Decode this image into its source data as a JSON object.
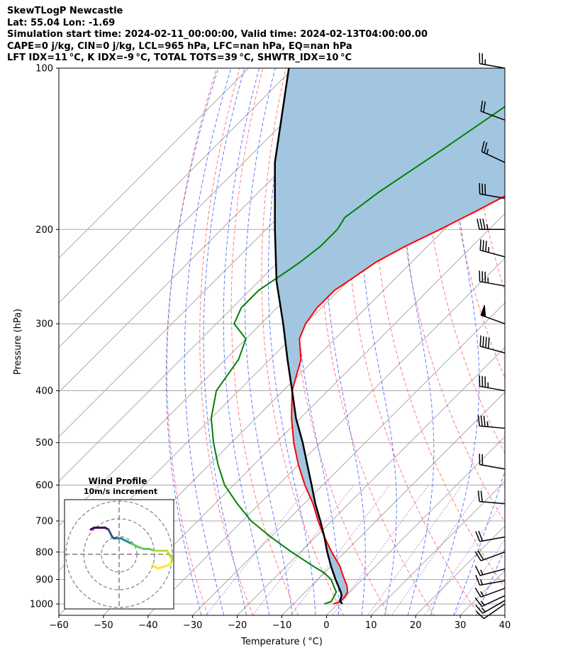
{
  "header": {
    "line1": "SkewTLogP Newcastle",
    "line2": "Lat: 55.04   Lon: -1.69",
    "line3": "Simulation start time: 2024-02-11_00:00:00, Valid time: 2024-02-13T04:00:00.00",
    "line4": "CAPE=0 j/kg, CIN=0 j/kg, LCL=965 hPa, LFC=nan hPa, EQ=nan hPa",
    "line5": "LFT IDX=11 °C, K IDX=-9 °C, TOTAL TOTS=39 °C, SHWTR_IDX=10 °C"
  },
  "chart_data": {
    "type": "skewt",
    "xlabel": "Temperature ( °C)",
    "ylabel": "Pressure (hPa)",
    "xlim": [
      -60,
      40
    ],
    "ylim": [
      1050,
      100
    ],
    "x_ticks": [
      -60,
      -50,
      -40,
      -30,
      -20,
      -10,
      0,
      10,
      20,
      30,
      40
    ],
    "x_tick_labels": [
      "−60",
      "−50",
      "−40",
      "−30",
      "−20",
      "−10",
      "0",
      "10",
      "20",
      "30",
      "40"
    ],
    "y_ticks": [
      1000,
      900,
      800,
      700,
      600,
      500,
      400,
      300,
      200,
      100
    ],
    "y_tick_labels": [
      "1000",
      "900",
      "800",
      "700",
      "600",
      "500",
      "400",
      "300",
      "200",
      "100"
    ],
    "colors": {
      "temperature": "#ff0000",
      "dewpoint": "#008000",
      "parcel": "#000000",
      "cin_shading": "#a3c6e0",
      "isotherms": "#aaaaaa",
      "isobars": "#aaaaaa",
      "dry_adiabats": "#ff6666",
      "moist_adiabats": "#4466ff",
      "mixing_ratio": "#9966cc"
    },
    "temperature_profile": {
      "pressure": [
        1000,
        990,
        970,
        950,
        925,
        900,
        875,
        850,
        800,
        750,
        700,
        650,
        600,
        550,
        500,
        450,
        400,
        350,
        320,
        300,
        280,
        260,
        250,
        230,
        215,
        200,
        185,
        170,
        160,
        150,
        140,
        130,
        120,
        110,
        100
      ],
      "temperature": [
        -1,
        0,
        0,
        -0.5,
        -2,
        -4,
        -6,
        -8,
        -13,
        -18,
        -23,
        -28,
        -34,
        -40,
        -46,
        -52,
        -58,
        -63,
        -68,
        -70,
        -71,
        -71,
        -70,
        -68,
        -65,
        -61,
        -57,
        -53,
        -50,
        -48,
        -47,
        -47,
        -48,
        -50,
        -52
      ]
    },
    "dewpoint_profile": {
      "pressure": [
        1000,
        990,
        970,
        950,
        925,
        900,
        875,
        850,
        800,
        750,
        700,
        650,
        600,
        550,
        500,
        450,
        400,
        350,
        320,
        300,
        280,
        260,
        240,
        230,
        215,
        200,
        190,
        170,
        140,
        100
      ],
      "dewpoint": [
        -3,
        -2,
        -2.5,
        -3,
        -5,
        -7,
        -10,
        -14,
        -22,
        -30,
        -38,
        -45,
        -52,
        -58,
        -64,
        -70,
        -75,
        -77,
        -80,
        -86,
        -88,
        -88,
        -86,
        -85,
        -84,
        -84,
        -85,
        -83,
        -78,
        -70
      ]
    },
    "parcel_profile": {
      "pressure": [
        1000,
        985,
        965,
        950,
        900,
        850,
        800,
        750,
        700,
        650,
        600,
        550,
        500,
        450,
        400,
        350,
        300,
        250,
        200,
        150,
        100
      ],
      "temperature": [
        1,
        -0.3,
        -1,
        -2,
        -6,
        -10,
        -14,
        -18,
        -22.5,
        -27.5,
        -32.5,
        -38,
        -44,
        -51,
        -58,
        -66,
        -75,
        -86,
        -98,
        -113,
        -131
      ]
    },
    "wind_barbs": [
      {
        "pressure": 100,
        "speed_kt": 25,
        "direction": 280
      },
      {
        "pressure": 125,
        "speed_kt": 20,
        "direction": 290
      },
      {
        "pressure": 150,
        "speed_kt": 25,
        "direction": 295
      },
      {
        "pressure": 175,
        "speed_kt": 30,
        "direction": 280
      },
      {
        "pressure": 200,
        "speed_kt": 35,
        "direction": 270
      },
      {
        "pressure": 225,
        "speed_kt": 35,
        "direction": 285
      },
      {
        "pressure": 255,
        "speed_kt": 35,
        "direction": 280
      },
      {
        "pressure": 300,
        "speed_kt": 50,
        "direction": 290
      },
      {
        "pressure": 340,
        "speed_kt": 40,
        "direction": 285
      },
      {
        "pressure": 400,
        "speed_kt": 35,
        "direction": 280
      },
      {
        "pressure": 470,
        "speed_kt": 35,
        "direction": 275
      },
      {
        "pressure": 560,
        "speed_kt": 20,
        "direction": 280
      },
      {
        "pressure": 650,
        "speed_kt": 20,
        "direction": 275
      },
      {
        "pressure": 750,
        "speed_kt": 20,
        "direction": 260
      },
      {
        "pressure": 800,
        "speed_kt": 20,
        "direction": 250
      },
      {
        "pressure": 860,
        "speed_kt": 15,
        "direction": 255
      },
      {
        "pressure": 905,
        "speed_kt": 15,
        "direction": 260
      },
      {
        "pressure": 935,
        "speed_kt": 15,
        "direction": 250
      },
      {
        "pressure": 965,
        "speed_kt": 15,
        "direction": 245
      },
      {
        "pressure": 985,
        "speed_kt": 15,
        "direction": 240
      },
      {
        "pressure": 1000,
        "speed_kt": 10,
        "direction": 235
      }
    ],
    "hodograph": {
      "title": "Wind Profile",
      "subtitle": "10m/s increment",
      "rings_ms": [
        10,
        20,
        30
      ],
      "range_ms": 30,
      "points": [
        [
          -16,
          14
        ],
        [
          -14,
          15
        ],
        [
          -11,
          15
        ],
        [
          -8,
          15
        ],
        [
          -6,
          14
        ],
        [
          -5,
          12
        ],
        [
          -4,
          10
        ],
        [
          -3,
          9
        ],
        [
          -1,
          9
        ],
        [
          1,
          9
        ],
        [
          3,
          8
        ],
        [
          5,
          7
        ],
        [
          7,
          6
        ],
        [
          11,
          4
        ],
        [
          14,
          3
        ],
        [
          17,
          3
        ],
        [
          20,
          2
        ],
        [
          22,
          2
        ],
        [
          27,
          2
        ],
        [
          30,
          -3
        ],
        [
          29,
          -5
        ],
        [
          28,
          -6
        ],
        [
          25,
          -7
        ],
        [
          22,
          -8
        ],
        [
          20,
          -7
        ],
        [
          19,
          -6
        ]
      ],
      "colors": [
        "#440154",
        "#3b528b",
        "#21918c",
        "#5ec962",
        "#bddf26",
        "#fde725"
      ]
    }
  }
}
